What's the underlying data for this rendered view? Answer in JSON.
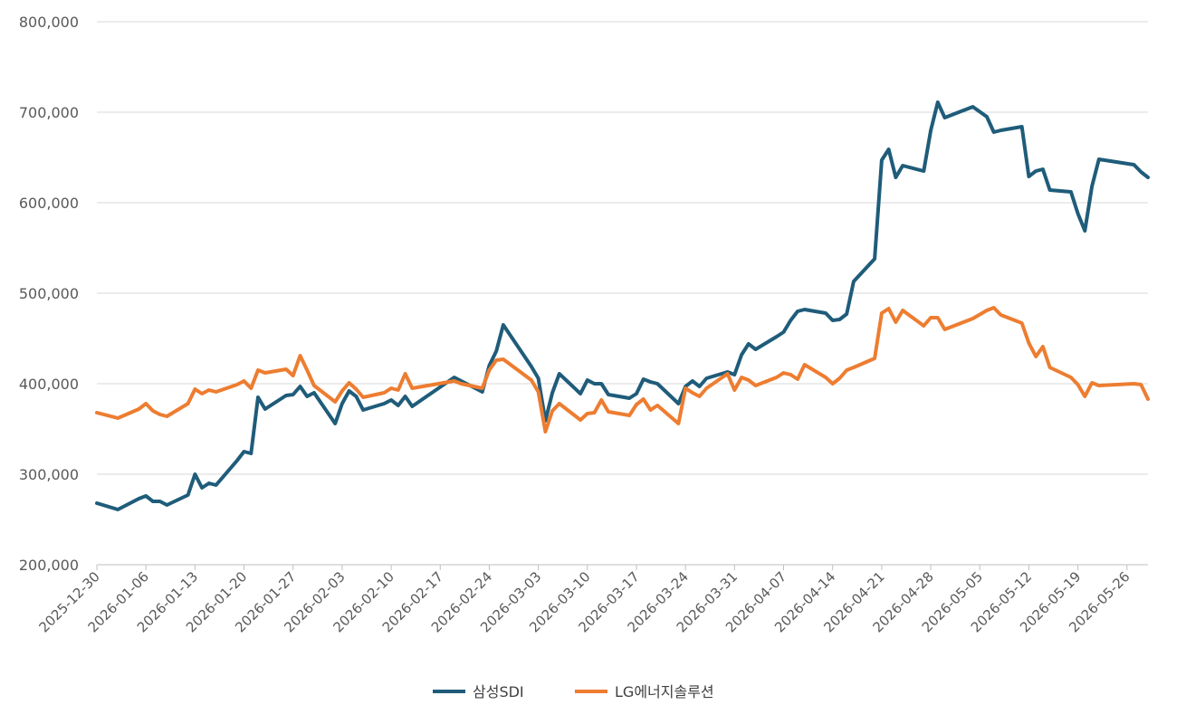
{
  "chart_data": {
    "type": "line",
    "title": "",
    "xlabel": "",
    "ylabel": "",
    "ylim": [
      200000,
      800000
    ],
    "y_ticks": [
      200000,
      300000,
      400000,
      500000,
      600000,
      700000,
      800000
    ],
    "y_tick_labels": [
      "200,000",
      "300,000",
      "400,000",
      "500,000",
      "600,000",
      "700,000",
      "800,000"
    ],
    "x_range": [
      "2025-12-30",
      "2026-05-29"
    ],
    "x_tick_labels": [
      "2025-12-30",
      "2026-01-06",
      "2026-01-13",
      "2026-01-20",
      "2026-01-27",
      "2026-02-03",
      "2026-02-10",
      "2026-02-17",
      "2026-02-24",
      "2026-03-03",
      "2026-03-10",
      "2026-03-17",
      "2026-03-24",
      "2026-03-31",
      "2026-04-07",
      "2026-04-14",
      "2026-04-21",
      "2026-04-28",
      "2026-05-05",
      "2026-05-12",
      "2026-05-19",
      "2026-05-26"
    ],
    "grid": true,
    "legend_position": "bottom",
    "series": [
      {
        "name": "삼성SDI",
        "color": "#1f5c7a",
        "points": [
          [
            "2025-12-30",
            268000
          ],
          [
            "2026-01-02",
            261000
          ],
          [
            "2026-01-05",
            273000
          ],
          [
            "2026-01-06",
            276000
          ],
          [
            "2026-01-07",
            270000
          ],
          [
            "2026-01-08",
            270000
          ],
          [
            "2026-01-09",
            266000
          ],
          [
            "2026-01-12",
            277000
          ],
          [
            "2026-01-13",
            300000
          ],
          [
            "2026-01-14",
            285000
          ],
          [
            "2026-01-15",
            290000
          ],
          [
            "2026-01-16",
            288000
          ],
          [
            "2026-01-19",
            315000
          ],
          [
            "2026-01-20",
            325000
          ],
          [
            "2026-01-21",
            323000
          ],
          [
            "2026-01-22",
            385000
          ],
          [
            "2026-01-23",
            372000
          ],
          [
            "2026-01-26",
            387000
          ],
          [
            "2026-01-27",
            388000
          ],
          [
            "2026-01-28",
            397000
          ],
          [
            "2026-01-29",
            386000
          ],
          [
            "2026-01-30",
            390000
          ],
          [
            "2026-02-02",
            356000
          ],
          [
            "2026-02-03",
            378000
          ],
          [
            "2026-02-04",
            392000
          ],
          [
            "2026-02-05",
            386000
          ],
          [
            "2026-02-06",
            371000
          ],
          [
            "2026-02-09",
            378000
          ],
          [
            "2026-02-10",
            382000
          ],
          [
            "2026-02-11",
            376000
          ],
          [
            "2026-02-12",
            386000
          ],
          [
            "2026-02-13",
            375000
          ],
          [
            "2026-02-19",
            407000
          ],
          [
            "2026-02-20",
            403000
          ],
          [
            "2026-02-23",
            391000
          ],
          [
            "2026-02-24",
            420000
          ],
          [
            "2026-02-25",
            436000
          ],
          [
            "2026-02-26",
            465000
          ],
          [
            "2026-03-02",
            419000
          ],
          [
            "2026-03-03",
            406000
          ],
          [
            "2026-03-04",
            359000
          ],
          [
            "2026-03-05",
            390000
          ],
          [
            "2026-03-06",
            411000
          ],
          [
            "2026-03-09",
            389000
          ],
          [
            "2026-03-10",
            404000
          ],
          [
            "2026-03-11",
            400000
          ],
          [
            "2026-03-12",
            400000
          ],
          [
            "2026-03-13",
            388000
          ],
          [
            "2026-03-16",
            384000
          ],
          [
            "2026-03-17",
            389000
          ],
          [
            "2026-03-18",
            405000
          ],
          [
            "2026-03-19",
            402000
          ],
          [
            "2026-03-20",
            400000
          ],
          [
            "2026-03-23",
            378000
          ],
          [
            "2026-03-24",
            397000
          ],
          [
            "2026-03-25",
            403000
          ],
          [
            "2026-03-26",
            397000
          ],
          [
            "2026-03-27",
            406000
          ],
          [
            "2026-03-30",
            413000
          ],
          [
            "2026-03-31",
            410000
          ],
          [
            "2026-04-01",
            432000
          ],
          [
            "2026-04-02",
            444000
          ],
          [
            "2026-04-03",
            438000
          ],
          [
            "2026-04-06",
            452000
          ],
          [
            "2026-04-07",
            457000
          ],
          [
            "2026-04-08",
            470000
          ],
          [
            "2026-04-09",
            480000
          ],
          [
            "2026-04-10",
            482000
          ],
          [
            "2026-04-13",
            478000
          ],
          [
            "2026-04-14",
            470000
          ],
          [
            "2026-04-15",
            471000
          ],
          [
            "2026-04-16",
            477000
          ],
          [
            "2026-04-17",
            513000
          ],
          [
            "2026-04-20",
            538000
          ],
          [
            "2026-04-21",
            647000
          ],
          [
            "2026-04-22",
            659000
          ],
          [
            "2026-04-23",
            628000
          ],
          [
            "2026-04-24",
            641000
          ],
          [
            "2026-04-27",
            635000
          ],
          [
            "2026-04-28",
            680000
          ],
          [
            "2026-04-29",
            711000
          ],
          [
            "2026-04-30",
            694000
          ],
          [
            "2026-05-04",
            706000
          ],
          [
            "2026-05-06",
            695000
          ],
          [
            "2026-05-07",
            678000
          ],
          [
            "2026-05-08",
            680000
          ],
          [
            "2026-05-11",
            684000
          ],
          [
            "2026-05-12",
            629000
          ],
          [
            "2026-05-13",
            635000
          ],
          [
            "2026-05-14",
            637000
          ],
          [
            "2026-05-15",
            614000
          ],
          [
            "2026-05-18",
            612000
          ],
          [
            "2026-05-19",
            588000
          ],
          [
            "2026-05-20",
            569000
          ],
          [
            "2026-05-21",
            618000
          ],
          [
            "2026-05-22",
            648000
          ],
          [
            "2026-05-27",
            642000
          ],
          [
            "2026-05-28",
            634000
          ],
          [
            "2026-05-29",
            628000
          ]
        ]
      },
      {
        "name": "LG에너지솔루션",
        "color": "#ed7d31",
        "points": [
          [
            "2025-12-30",
            368000
          ],
          [
            "2026-01-02",
            362000
          ],
          [
            "2026-01-05",
            372000
          ],
          [
            "2026-01-06",
            378000
          ],
          [
            "2026-01-07",
            370000
          ],
          [
            "2026-01-08",
            366000
          ],
          [
            "2026-01-09",
            364000
          ],
          [
            "2026-01-12",
            378000
          ],
          [
            "2026-01-13",
            394000
          ],
          [
            "2026-01-14",
            389000
          ],
          [
            "2026-01-15",
            393000
          ],
          [
            "2026-01-16",
            391000
          ],
          [
            "2026-01-19",
            399000
          ],
          [
            "2026-01-20",
            403000
          ],
          [
            "2026-01-21",
            395000
          ],
          [
            "2026-01-22",
            415000
          ],
          [
            "2026-01-23",
            412000
          ],
          [
            "2026-01-26",
            416000
          ],
          [
            "2026-01-27",
            409000
          ],
          [
            "2026-01-28",
            431000
          ],
          [
            "2026-01-29",
            415000
          ],
          [
            "2026-01-30",
            398000
          ],
          [
            "2026-02-02",
            380000
          ],
          [
            "2026-02-03",
            392000
          ],
          [
            "2026-02-04",
            401000
          ],
          [
            "2026-02-05",
            394000
          ],
          [
            "2026-02-06",
            385000
          ],
          [
            "2026-02-09",
            390000
          ],
          [
            "2026-02-10",
            395000
          ],
          [
            "2026-02-11",
            393000
          ],
          [
            "2026-02-12",
            411000
          ],
          [
            "2026-02-13",
            395000
          ],
          [
            "2026-02-19",
            403000
          ],
          [
            "2026-02-20",
            400000
          ],
          [
            "2026-02-23",
            395000
          ],
          [
            "2026-02-24",
            415000
          ],
          [
            "2026-02-25",
            426000
          ],
          [
            "2026-02-26",
            427000
          ],
          [
            "2026-03-02",
            404000
          ],
          [
            "2026-03-03",
            391000
          ],
          [
            "2026-03-04",
            347000
          ],
          [
            "2026-03-05",
            370000
          ],
          [
            "2026-03-06",
            378000
          ],
          [
            "2026-03-09",
            360000
          ],
          [
            "2026-03-10",
            367000
          ],
          [
            "2026-03-11",
            368000
          ],
          [
            "2026-03-12",
            382000
          ],
          [
            "2026-03-13",
            369000
          ],
          [
            "2026-03-16",
            365000
          ],
          [
            "2026-03-17",
            377000
          ],
          [
            "2026-03-18",
            383000
          ],
          [
            "2026-03-19",
            371000
          ],
          [
            "2026-03-20",
            376000
          ],
          [
            "2026-03-23",
            356000
          ],
          [
            "2026-03-24",
            395000
          ],
          [
            "2026-03-25",
            390000
          ],
          [
            "2026-03-26",
            386000
          ],
          [
            "2026-03-27",
            395000
          ],
          [
            "2026-03-30",
            411000
          ],
          [
            "2026-03-31",
            393000
          ],
          [
            "2026-04-01",
            407000
          ],
          [
            "2026-04-02",
            404000
          ],
          [
            "2026-04-03",
            398000
          ],
          [
            "2026-04-06",
            407000
          ],
          [
            "2026-04-07",
            412000
          ],
          [
            "2026-04-08",
            410000
          ],
          [
            "2026-04-09",
            405000
          ],
          [
            "2026-04-10",
            421000
          ],
          [
            "2026-04-13",
            407000
          ],
          [
            "2026-04-14",
            400000
          ],
          [
            "2026-04-15",
            406000
          ],
          [
            "2026-04-16",
            415000
          ],
          [
            "2026-04-17",
            418000
          ],
          [
            "2026-04-20",
            428000
          ],
          [
            "2026-04-21",
            478000
          ],
          [
            "2026-04-22",
            483000
          ],
          [
            "2026-04-23",
            468000
          ],
          [
            "2026-04-24",
            481000
          ],
          [
            "2026-04-27",
            464000
          ],
          [
            "2026-04-28",
            473000
          ],
          [
            "2026-04-29",
            473000
          ],
          [
            "2026-04-30",
            460000
          ],
          [
            "2026-05-04",
            472000
          ],
          [
            "2026-05-06",
            481000
          ],
          [
            "2026-05-07",
            484000
          ],
          [
            "2026-05-08",
            476000
          ],
          [
            "2026-05-11",
            467000
          ],
          [
            "2026-05-12",
            445000
          ],
          [
            "2026-05-13",
            430000
          ],
          [
            "2026-05-14",
            441000
          ],
          [
            "2026-05-15",
            418000
          ],
          [
            "2026-05-18",
            407000
          ],
          [
            "2026-05-19",
            399000
          ],
          [
            "2026-05-20",
            386000
          ],
          [
            "2026-05-21",
            401000
          ],
          [
            "2026-05-22",
            398000
          ],
          [
            "2026-05-27",
            400000
          ],
          [
            "2026-05-28",
            399000
          ],
          [
            "2026-05-29",
            383000
          ]
        ]
      }
    ]
  }
}
